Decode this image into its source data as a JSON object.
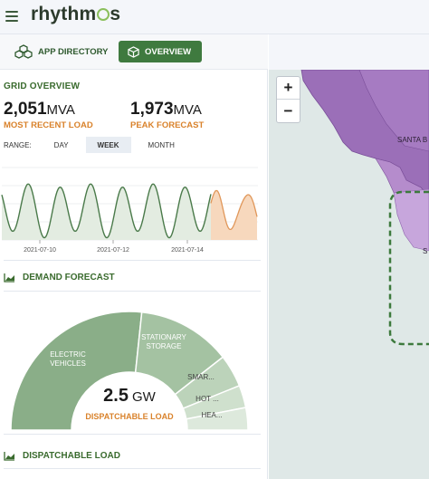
{
  "brand": {
    "logo_text": "rhythm",
    "logo_suffix": "s",
    "accent": "#8bbf5c"
  },
  "nav": {
    "app_directory": "APP DIRECTORY",
    "overview": "OVERVIEW",
    "active": "overview"
  },
  "grid_overview": {
    "title": "GRID OVERVIEW",
    "recent_load_value": "2,051",
    "recent_load_unit": "MVA",
    "recent_load_label": "MOST RECENT LOAD",
    "peak_value": "1,973",
    "peak_unit": "MVA",
    "peak_label": "PEAK FORECAST",
    "range_label": "RANGE:",
    "range_options": [
      "DAY",
      "WEEK",
      "MONTH"
    ],
    "range_selected": "WEEK"
  },
  "chart_data": {
    "type": "area",
    "x_ticks": [
      "2021-07-10",
      "2021-07-12",
      "2021-07-14"
    ],
    "series": [
      {
        "kind": "actual",
        "color": "#4a7a4a",
        "fill": "#e3ece1"
      },
      {
        "kind": "forecast",
        "color": "#e0975a",
        "fill": "#f7d8bd"
      }
    ],
    "grid": true
  },
  "demand_forecast": {
    "title": "DEMAND FORECAST",
    "center_value": "2.5",
    "center_unit": "GW",
    "center_label": "DISPATCHABLE LOAD",
    "segments": [
      {
        "label_line1": "ELECTRIC",
        "label_line2": "VEHICLES",
        "color": "#8aae88"
      },
      {
        "label_line1": "STATIONARY",
        "label_line2": "STORAGE",
        "color": "#a4c2a2"
      },
      {
        "label_line1": "SMAR...",
        "label_line2": "",
        "color": "#bcd3ba"
      },
      {
        "label_line1": "HOT ...",
        "label_line2": "",
        "color": "#cfe0cd"
      },
      {
        "label_line1": "HEA...",
        "label_line2": "",
        "color": "#dde9dc"
      }
    ]
  },
  "dispatchable_load": {
    "title": "DISPATCHABLE LOAD"
  },
  "map": {
    "zoom_in": "+",
    "zoom_out": "−",
    "place_label": "SANTA B",
    "place_label_2": "S"
  }
}
